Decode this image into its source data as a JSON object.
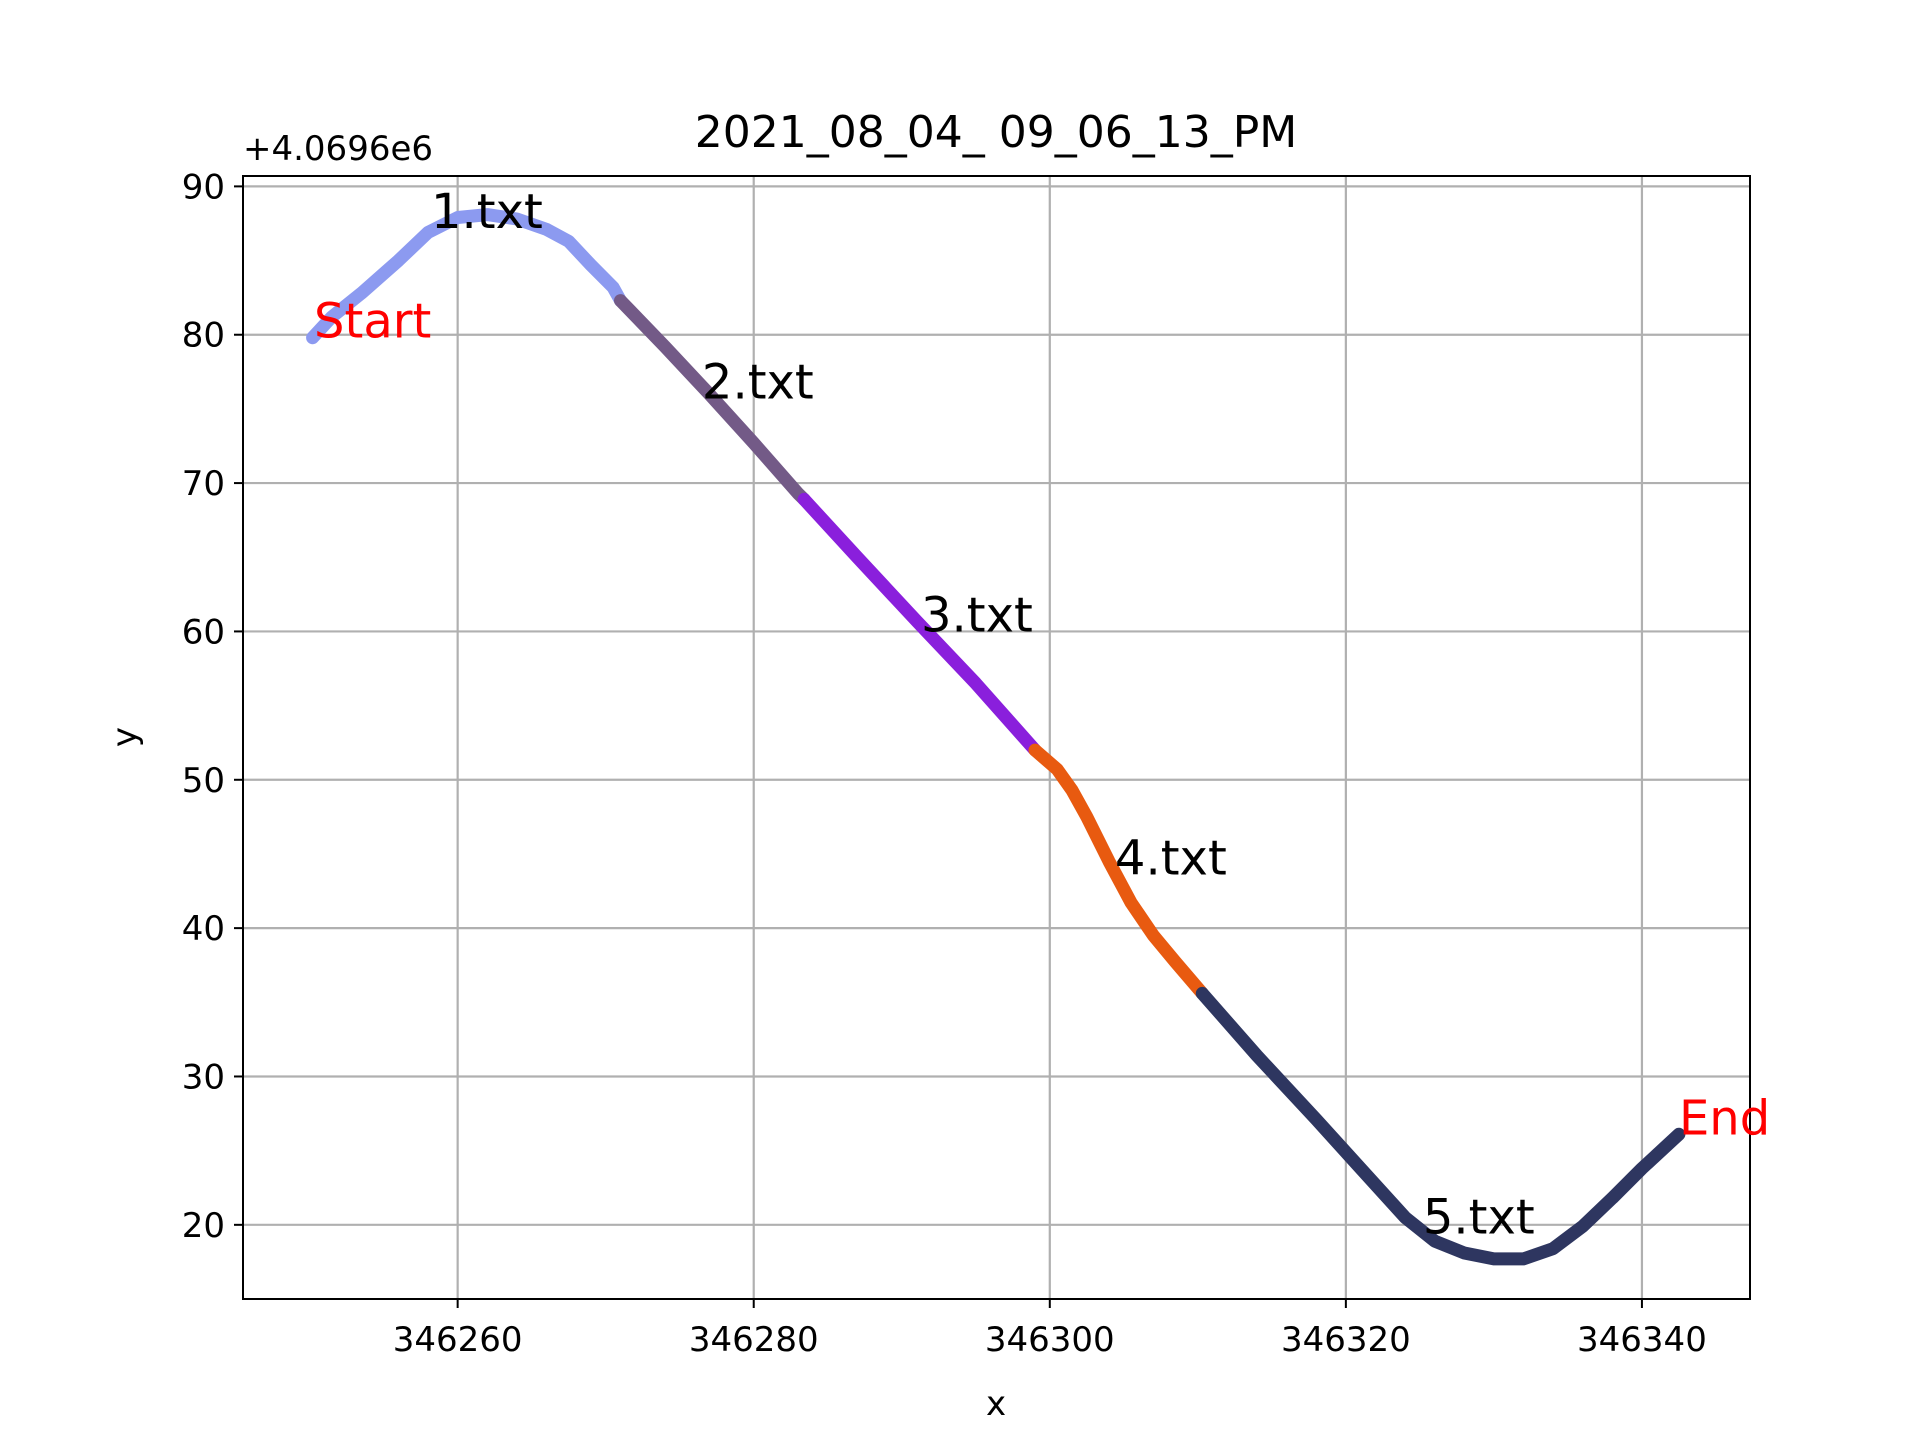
{
  "chart_data": {
    "type": "line",
    "title": "2021_08_04_ 09_06_13_PM",
    "xlabel": "x",
    "ylabel": "y",
    "y_offset_label": "+4.0696e6",
    "xlim": [
      346245.5,
      346347.3
    ],
    "ylim": [
      15,
      90.7
    ],
    "xticks": [
      346260,
      346280,
      346300,
      346320,
      346340
    ],
    "yticks": [
      20,
      30,
      40,
      50,
      60,
      70,
      80,
      90
    ],
    "grid": true,
    "series": [
      {
        "name": "1.txt",
        "color": "#8c9af0",
        "points": [
          [
            346250.2,
            79.8
          ],
          [
            346251.5,
            81.2
          ],
          [
            346253.5,
            82.8
          ],
          [
            346256,
            85
          ],
          [
            346258,
            86.9
          ],
          [
            346260,
            87.9
          ],
          [
            346262,
            88.1
          ],
          [
            346264,
            87.8
          ],
          [
            346266,
            87.1
          ],
          [
            346267.5,
            86.3
          ],
          [
            346269,
            84.7
          ],
          [
            346270.5,
            83.2
          ],
          [
            346271,
            82.3
          ]
        ]
      },
      {
        "name": "2.txt",
        "color": "#735a87",
        "points": [
          [
            346271,
            82.3
          ],
          [
            346274,
            79.2
          ],
          [
            346277,
            76
          ],
          [
            346280,
            72.7
          ],
          [
            346283,
            69.3
          ],
          [
            346283.4,
            68.9
          ]
        ]
      },
      {
        "name": "3.txt",
        "color": "#8a1fdc",
        "points": [
          [
            346283.4,
            68.9
          ],
          [
            346287,
            65
          ],
          [
            346291,
            60.7
          ],
          [
            346295,
            56.5
          ],
          [
            346299,
            52
          ]
        ]
      },
      {
        "name": "4.txt",
        "color": "#e85a10",
        "points": [
          [
            346299,
            52
          ],
          [
            346300.5,
            50.7
          ],
          [
            346301.5,
            49.3
          ],
          [
            346302.5,
            47.5
          ],
          [
            346304,
            44.5
          ],
          [
            346305.5,
            41.7
          ],
          [
            346307,
            39.5
          ],
          [
            346308.5,
            37.7
          ],
          [
            346310.3,
            35.6
          ]
        ]
      },
      {
        "name": "5.txt",
        "color": "#2e3660",
        "points": [
          [
            346310.3,
            35.6
          ],
          [
            346314,
            31.4
          ],
          [
            346318,
            27.1
          ],
          [
            346321,
            23.8
          ],
          [
            346324,
            20.5
          ],
          [
            346326,
            18.9
          ],
          [
            346328,
            18.1
          ],
          [
            346330,
            17.7
          ],
          [
            346332,
            17.7
          ],
          [
            346334,
            18.4
          ],
          [
            346336,
            19.9
          ],
          [
            346338,
            21.8
          ],
          [
            346340,
            23.8
          ],
          [
            346342.5,
            26.1
          ]
        ]
      }
    ],
    "annotations": [
      {
        "text": "1.txt",
        "x": 346258.2,
        "y": 87.2,
        "color": "#000000"
      },
      {
        "text": "2.txt",
        "x": 346276.5,
        "y": 75.7,
        "color": "#000000"
      },
      {
        "text": "3.txt",
        "x": 346291.3,
        "y": 60.0,
        "color": "#000000"
      },
      {
        "text": "4.txt",
        "x": 346304.4,
        "y": 43.6,
        "color": "#000000"
      },
      {
        "text": "5.txt",
        "x": 346325.2,
        "y": 19.4,
        "color": "#000000"
      },
      {
        "text": "Start",
        "x": 346250.3,
        "y": 79.8,
        "color": "#ff0000"
      },
      {
        "text": "End",
        "x": 346342.5,
        "y": 26.1,
        "color": "#ff0000"
      }
    ]
  }
}
